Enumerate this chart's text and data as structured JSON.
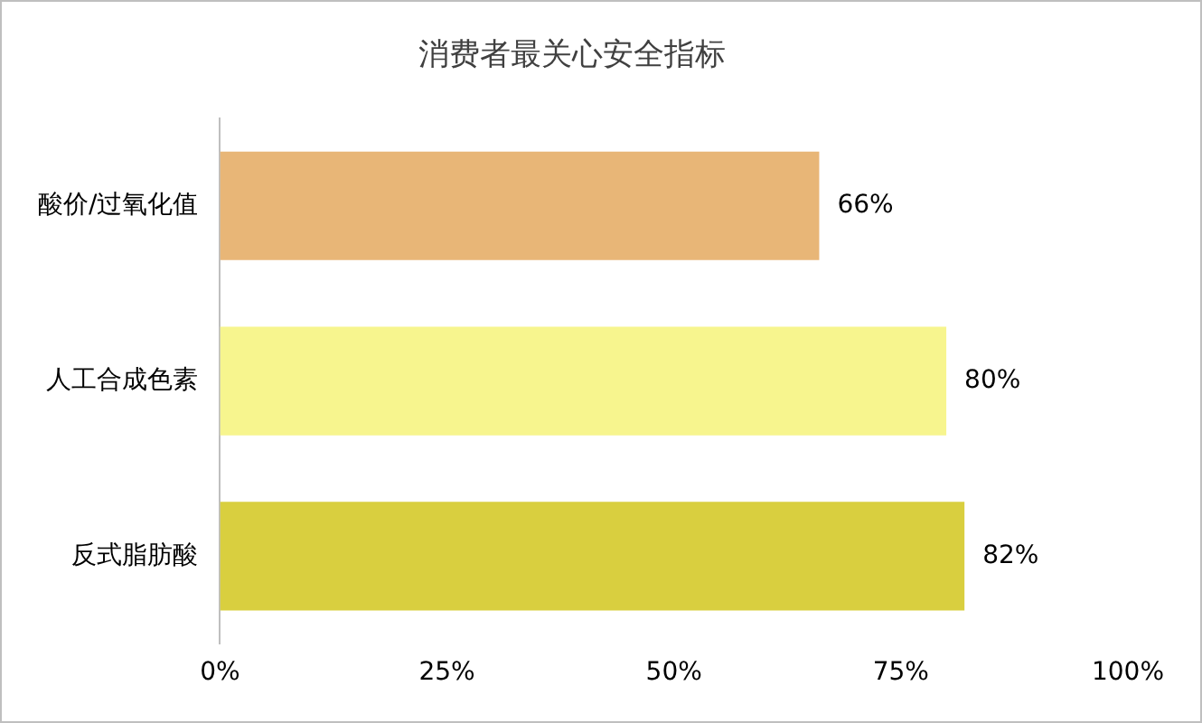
{
  "chart_data": {
    "type": "bar",
    "orientation": "horizontal",
    "title": "消费者最关心安全指标",
    "categories": [
      "酸价/过氧化值",
      "人工合成色素",
      "反式脂肪酸"
    ],
    "values": [
      66,
      80,
      82
    ],
    "colors": [
      "#e8b677",
      "#f7f58e",
      "#d9cf3f"
    ],
    "value_labels": [
      "66%",
      "80%",
      "82%"
    ],
    "xlim": [
      0,
      100
    ],
    "xticks": [
      {
        "value": 0,
        "label": "0%"
      },
      {
        "value": 25,
        "label": "25%"
      },
      {
        "value": 50,
        "label": "50%"
      },
      {
        "value": 75,
        "label": "75%"
      },
      {
        "value": 100,
        "label": "100%"
      }
    ],
    "grid": false,
    "legend": false
  }
}
